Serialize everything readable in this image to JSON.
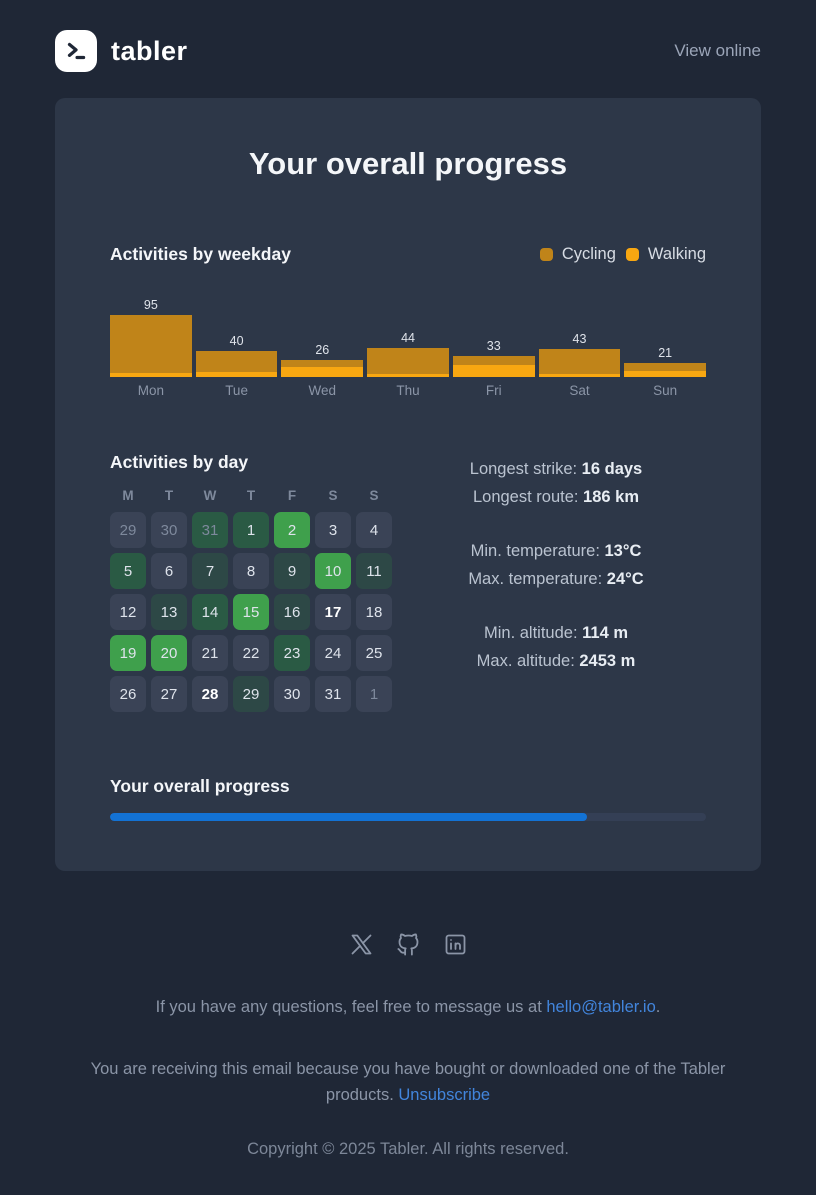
{
  "header": {
    "brand": "tabler",
    "view_online": "View online"
  },
  "card": {
    "title": "Your overall progress"
  },
  "weekday_section": {
    "heading": "Activities by weekday",
    "legend": [
      {
        "label": "Cycling",
        "color": "#c08419"
      },
      {
        "label": "Walking",
        "color": "#f8a711"
      }
    ]
  },
  "chart_data": {
    "type": "bar",
    "stacked": true,
    "title": "Activities by weekday",
    "categories": [
      "Mon",
      "Tue",
      "Wed",
      "Thu",
      "Fri",
      "Sat",
      "Sun"
    ],
    "totals": [
      95,
      40,
      26,
      44,
      33,
      43,
      21
    ],
    "series": [
      {
        "name": "Cycling",
        "color": "#c08419",
        "values": [
          89,
          32,
          10,
          39,
          15,
          38,
          11
        ]
      },
      {
        "name": "Walking",
        "color": "#f8a711",
        "values": [
          6,
          8,
          16,
          5,
          18,
          5,
          10
        ]
      }
    ],
    "ylim": [
      0,
      95
    ],
    "value_labels": true,
    "legend_position": "top-right",
    "grid": false
  },
  "day_section": {
    "heading": "Activities by day",
    "weekday_headers": [
      "M",
      "T",
      "W",
      "T",
      "F",
      "S",
      "S"
    ],
    "level_colors": {
      "none": "#3a4356",
      "low": "#2d4846",
      "medium": "#2a5a44",
      "high": "#3fa04c"
    },
    "days": [
      {
        "d": "29",
        "level": "none",
        "muted": true
      },
      {
        "d": "30",
        "level": "none",
        "muted": true
      },
      {
        "d": "31",
        "level": "medium",
        "muted": true
      },
      {
        "d": "1",
        "level": "medium"
      },
      {
        "d": "2",
        "level": "high"
      },
      {
        "d": "3",
        "level": "none"
      },
      {
        "d": "4",
        "level": "none"
      },
      {
        "d": "5",
        "level": "medium"
      },
      {
        "d": "6",
        "level": "none"
      },
      {
        "d": "7",
        "level": "low"
      },
      {
        "d": "8",
        "level": "none"
      },
      {
        "d": "9",
        "level": "low"
      },
      {
        "d": "10",
        "level": "high"
      },
      {
        "d": "11",
        "level": "low"
      },
      {
        "d": "12",
        "level": "none"
      },
      {
        "d": "13",
        "level": "low"
      },
      {
        "d": "14",
        "level": "medium"
      },
      {
        "d": "15",
        "level": "high"
      },
      {
        "d": "16",
        "level": "low"
      },
      {
        "d": "17",
        "level": "none",
        "bold": true
      },
      {
        "d": "18",
        "level": "none"
      },
      {
        "d": "19",
        "level": "high"
      },
      {
        "d": "20",
        "level": "high"
      },
      {
        "d": "21",
        "level": "none"
      },
      {
        "d": "22",
        "level": "none"
      },
      {
        "d": "23",
        "level": "medium"
      },
      {
        "d": "24",
        "level": "none"
      },
      {
        "d": "25",
        "level": "none"
      },
      {
        "d": "26",
        "level": "none"
      },
      {
        "d": "27",
        "level": "none"
      },
      {
        "d": "28",
        "level": "none",
        "bold": true
      },
      {
        "d": "29",
        "level": "low"
      },
      {
        "d": "30",
        "level": "none"
      },
      {
        "d": "31",
        "level": "none"
      },
      {
        "d": "1",
        "level": "none",
        "muted": true
      }
    ]
  },
  "stats": {
    "groups": [
      [
        {
          "label": "Longest strike:",
          "value": "16 days"
        },
        {
          "label": "Longest route:",
          "value": "186 km"
        }
      ],
      [
        {
          "label": "Min. temperature:",
          "value": "13°C"
        },
        {
          "label": "Max. temperature:",
          "value": "24°C"
        }
      ],
      [
        {
          "label": "Min. altitude:",
          "value": "114 m"
        },
        {
          "label": "Max. altitude:",
          "value": "2453 m"
        }
      ]
    ]
  },
  "progress_section": {
    "heading": "Your overall progress",
    "percent": 80,
    "color": "#1372d4"
  },
  "footer": {
    "social_icons": [
      "x",
      "github",
      "linkedin"
    ],
    "line1_prefix": "If you have any questions, feel free to message us at ",
    "line1_link": "hello@tabler.io",
    "line1_suffix": ".",
    "line2_prefix": "You are receiving this email because you have bought or downloaded one of the Tabler products. ",
    "line2_link": "Unsubscribe",
    "copyright": "Copyright © 2025 Tabler. All rights reserved."
  }
}
